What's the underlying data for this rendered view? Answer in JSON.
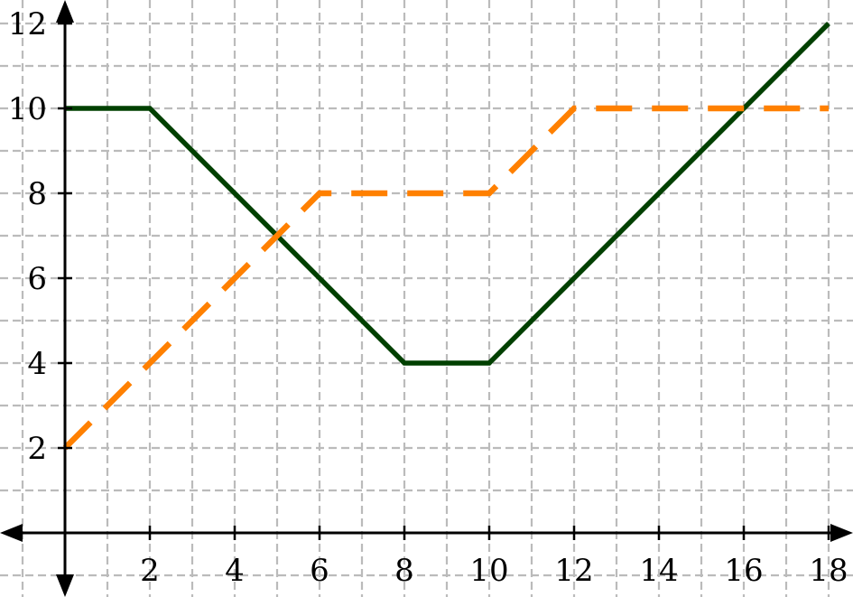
{
  "chart_data": {
    "type": "line",
    "title": "",
    "xlabel": "",
    "ylabel": "",
    "xlim": [
      -1.5,
      18.5
    ],
    "ylim": [
      -1.5,
      12.5
    ],
    "x_ticks": [
      2,
      4,
      6,
      8,
      10,
      12,
      14,
      16,
      18
    ],
    "y_ticks": [
      2,
      4,
      6,
      8,
      10,
      12
    ],
    "x_tick_labels": [
      "2",
      "4",
      "6",
      "8",
      "10",
      "12",
      "14",
      "16",
      "18"
    ],
    "y_tick_labels": [
      "2",
      "4",
      "6",
      "8",
      "10",
      "12"
    ],
    "grid": true,
    "grid_step": 1,
    "legend": "none",
    "series": [
      {
        "style": "solid",
        "color": "#004000",
        "x": [
          0,
          2,
          8,
          10,
          18
        ],
        "y": [
          10,
          10,
          4,
          4,
          12
        ]
      },
      {
        "style": "dashed",
        "color": "#ff8000",
        "x": [
          0,
          6,
          10,
          12,
          18
        ],
        "y": [
          2,
          8,
          8,
          10,
          10
        ]
      }
    ]
  },
  "colors": {
    "grid": "#bbbbbb",
    "axis": "#000000"
  }
}
